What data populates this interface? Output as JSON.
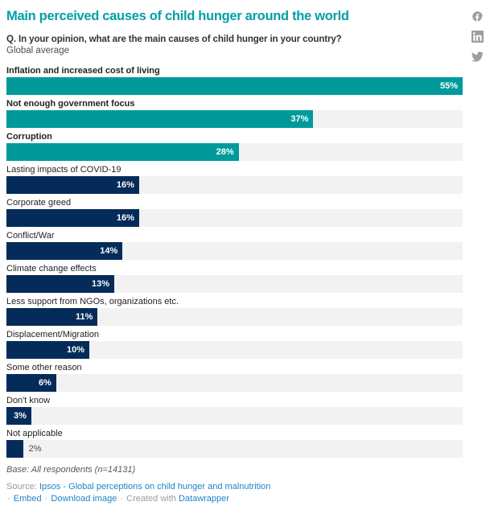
{
  "header": {
    "title": "Main perceived causes of child hunger around the world",
    "question": "Q. In your opinion, what are the main causes of child hunger in your country?",
    "subtitle": "Global average"
  },
  "social": {
    "icons": [
      "facebook",
      "linkedin",
      "twitter"
    ],
    "icon_color": "#9e9e9e"
  },
  "chart_data": {
    "type": "bar",
    "orientation": "horizontal",
    "title": "Main perceived causes of child hunger around the world",
    "categories": [
      "Inflation and increased cost of living",
      "Not enough government focus",
      "Corruption",
      "Lasting impacts of COVID-19",
      "Corporate greed",
      "Conflict/War",
      "Climate change effects",
      "Less support from NGOs, organizations etc.",
      "Displacement/Migration",
      "Some other reason",
      "Don't know",
      "Not applicable"
    ],
    "values": [
      55,
      37,
      28,
      16,
      16,
      14,
      13,
      11,
      10,
      6,
      3,
      2
    ],
    "value_labels": [
      "55%",
      "37%",
      "28%",
      "16%",
      "16%",
      "14%",
      "13%",
      "11%",
      "10%",
      "6%",
      "3%",
      "2%"
    ],
    "xlim": [
      0,
      55
    ],
    "grid": false,
    "legend": "none",
    "highlight_count": 3,
    "outside_label_indices": [
      11
    ],
    "colors": {
      "title": "#00a0a5",
      "highlight_bar": "#009a9a",
      "default_bar": "#042b5a",
      "track": "#f2f2f2",
      "value_inside": "#ffffff",
      "value_outside": "#4d4d4d"
    }
  },
  "footer": {
    "base_note": "Base: All respondents (n=14131)",
    "source_label": "Source:",
    "source_link": "Ipsos - Global perceptions on child hunger and malnutrition",
    "separator": "·",
    "embed_label": "Embed",
    "download_label": "Download image",
    "created_with": "Created with",
    "tool_link": "Datawrapper",
    "link_color": "#1d84c6"
  }
}
